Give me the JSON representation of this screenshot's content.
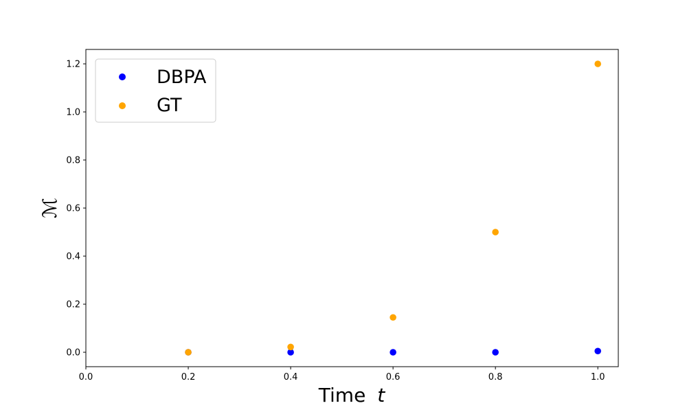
{
  "chart_data": {
    "type": "scatter",
    "title": "",
    "xlabel": "Time",
    "xlabel_var": "t",
    "ylabel": "M",
    "xlim": [
      0.0,
      1.04
    ],
    "ylim": [
      -0.06,
      1.26
    ],
    "xticks": [
      "0.0",
      "0.2",
      "0.4",
      "0.6",
      "0.8",
      "1.0"
    ],
    "yticks": [
      "0.0",
      "0.2",
      "0.4",
      "0.6",
      "0.8",
      "1.0",
      "1.2"
    ],
    "grid": false,
    "legend_position": "top-left",
    "series": [
      {
        "name": "DBPA",
        "color": "#0000ff",
        "x": [
          0.2,
          0.4,
          0.6,
          0.8,
          1.0
        ],
        "y": [
          0.0,
          0.0,
          0.0,
          0.0,
          0.005
        ]
      },
      {
        "name": "GT",
        "color": "#ffa500",
        "x": [
          0.2,
          0.4,
          0.6,
          0.8,
          1.0
        ],
        "y": [
          0.0,
          0.022,
          0.145,
          0.5,
          1.2
        ]
      }
    ]
  }
}
